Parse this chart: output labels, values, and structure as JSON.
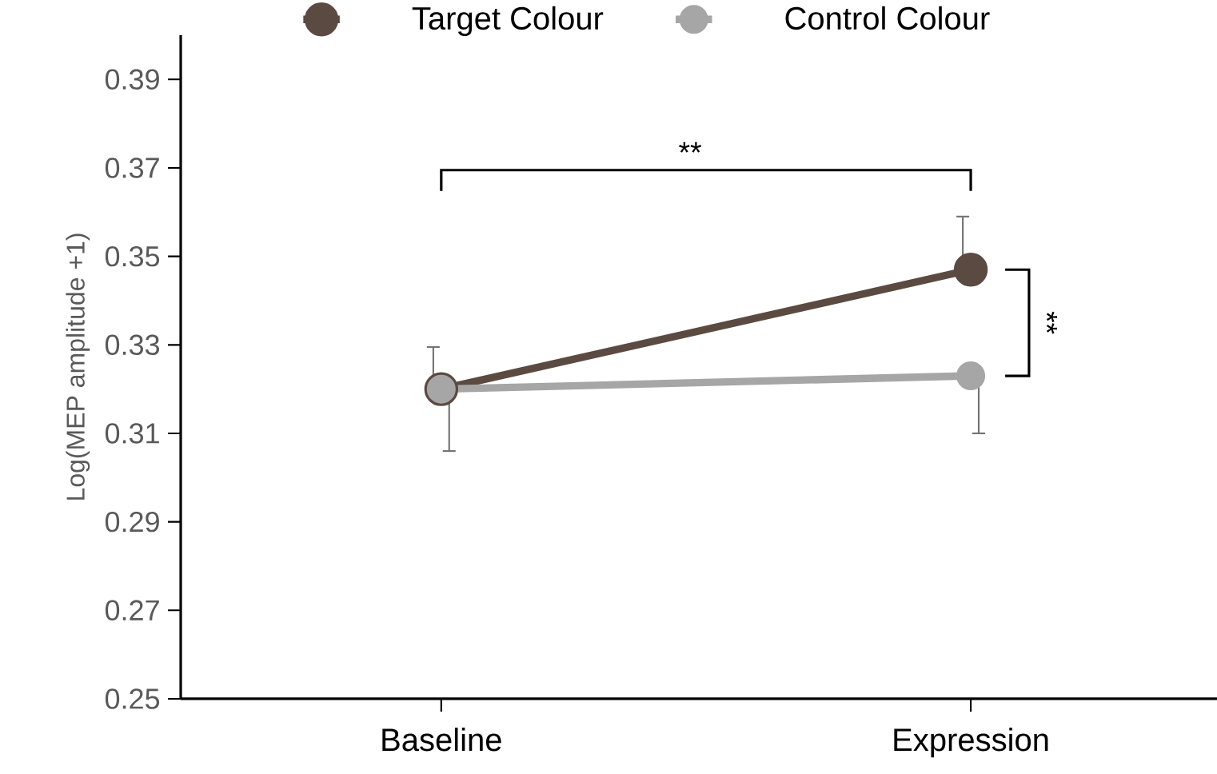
{
  "chart_data": {
    "type": "line",
    "ylabel": "Log(MEP amplitude +1)",
    "categories": [
      "Baseline",
      "Expression"
    ],
    "series": [
      {
        "name": "Target Colour",
        "color": "#5b4a42",
        "values": [
          0.32,
          0.347
        ],
        "errors": [
          [
            0.32,
            0.3295
          ],
          [
            0.347,
            0.359
          ]
        ]
      },
      {
        "name": "Control Colour",
        "color": "#a6a6a6",
        "values": [
          0.32,
          0.323
        ],
        "errors": [
          [
            0.306,
            0.32
          ],
          [
            0.31,
            0.323
          ]
        ]
      }
    ],
    "ylim": [
      0.25,
      0.4
    ],
    "yticks": [
      0.25,
      0.27,
      0.29,
      0.31,
      0.33,
      0.35,
      0.37,
      0.39
    ],
    "annotations": [
      "**",
      "**"
    ],
    "legend": "top",
    "marker": "circle",
    "line_style": "solid",
    "grid": false
  }
}
